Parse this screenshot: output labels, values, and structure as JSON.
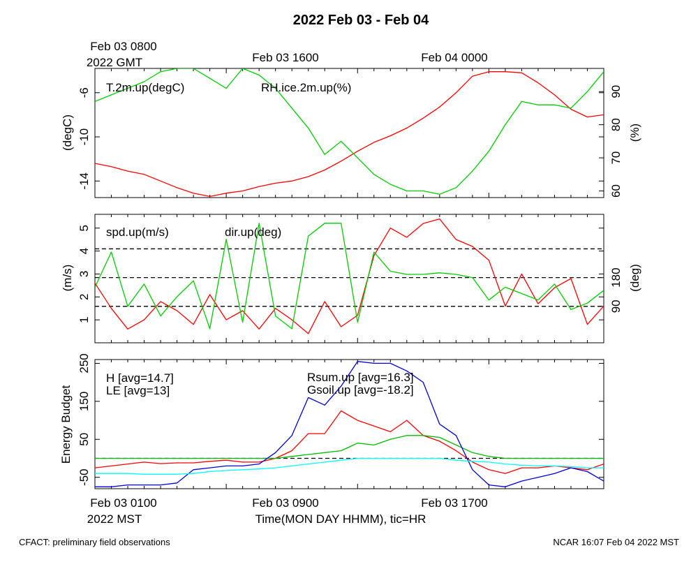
{
  "chart_data": {
    "title": "2022 Feb 03 - Feb 04",
    "type": "line",
    "top_axis": {
      "labels": [
        "Feb 03 0800",
        "Feb 03 1600",
        "Feb 04 0000"
      ],
      "sublabel": "2022 GMT"
    },
    "bottom_axis": {
      "labels": [
        "Feb 03 0100",
        "Feb 03 0900",
        "Feb 03 1700"
      ],
      "sublabel": "2022 MST",
      "xlabel": "Time(MON DAY HHMM), tic=HR"
    },
    "panels": [
      {
        "id": "temp-rh",
        "left_axis": {
          "label": "(degC)",
          "range": [
            -15.5,
            -3.8
          ],
          "ticks": [
            {
              "v": -6,
              "t": "-6"
            },
            {
              "v": -10,
              "t": "-10"
            },
            {
              "v": -14,
              "t": "-14"
            }
          ]
        },
        "right_axis": {
          "label": "(%)",
          "range": [
            58,
            97
          ],
          "ticks": [
            {
              "v": 90,
              "t": "90"
            },
            {
              "v": 80,
              "t": "80"
            },
            {
              "v": 70,
              "t": "70"
            },
            {
              "v": 60,
              "t": "60"
            }
          ]
        },
        "series": [
          {
            "name": "T.2m.up(degC)",
            "color": "#ff0000",
            "axis": "left",
            "x": [
              0,
              1,
              2,
              3,
              4,
              5,
              6,
              7,
              8,
              9,
              10,
              11,
              12,
              13,
              14,
              15,
              16,
              17,
              18,
              19,
              20,
              21,
              22,
              23,
              24,
              25,
              26,
              27,
              28,
              29,
              30,
              31
            ],
            "y": [
              -12.4,
              -12.7,
              -13.1,
              -13.4,
              -14.0,
              -14.6,
              -15.1,
              -15.4,
              -15.1,
              -14.9,
              -14.5,
              -14.2,
              -14.0,
              -13.6,
              -13.0,
              -12.2,
              -11.3,
              -10.5,
              -9.9,
              -9.2,
              -8.3,
              -7.3,
              -6.0,
              -4.5,
              -4.1,
              -4.1,
              -4.2,
              -5.1,
              -6.2,
              -7.5,
              -8.2,
              -8.0
            ]
          },
          {
            "name": "RH.ice.2m.up(%)",
            "color": "#00cc00",
            "axis": "right",
            "x": [
              0,
              1,
              2,
              3,
              4,
              5,
              6,
              7,
              8,
              9,
              10,
              11,
              12,
              13,
              14,
              15,
              16,
              17,
              18,
              19,
              20,
              21,
              22,
              23,
              24,
              25,
              26,
              27,
              28,
              29,
              30,
              31
            ],
            "y": [
              87,
              89,
              91,
              93,
              96,
              97,
              97,
              94,
              91,
              97,
              95,
              91,
              85,
              79,
              71,
              75,
              70,
              65,
              62,
              60,
              60,
              59,
              61,
              66,
              72,
              80,
              87,
              86,
              86,
              85,
              90,
              96
            ]
          }
        ]
      },
      {
        "id": "wind",
        "left_axis": {
          "label": "(m/s)",
          "range": [
            0,
            5.6
          ],
          "ticks": [
            {
              "v": 5,
              "t": "5"
            },
            {
              "v": 4,
              "t": "4"
            },
            {
              "v": 3,
              "t": "3"
            },
            {
              "v": 2,
              "t": "2"
            },
            {
              "v": 1,
              "t": "1"
            }
          ]
        },
        "right_axis": {
          "label": "(deg)",
          "range": [
            -24,
            378
          ],
          "ticks": [
            {
              "v": 180,
              "t": "180"
            },
            {
              "v": 90,
              "t": "90"
            }
          ]
        },
        "reference_lines_right": [
          90,
          180,
          270
        ],
        "series": [
          {
            "name": "spd.up(m/s)",
            "color": "#ff0000",
            "axis": "left",
            "x": [
              0,
              1,
              2,
              3,
              4,
              5,
              6,
              7,
              8,
              9,
              10,
              11,
              12,
              13,
              14,
              15,
              16,
              17,
              18,
              19,
              20,
              21,
              22,
              23,
              24,
              25,
              26,
              27,
              28,
              29,
              30,
              31
            ],
            "y": [
              2.6,
              1.5,
              0.6,
              1.0,
              1.8,
              1.4,
              0.8,
              2.1,
              1.0,
              1.4,
              0.6,
              1.5,
              1.0,
              0.4,
              1.8,
              0.7,
              1.2,
              3.8,
              5.0,
              4.6,
              5.2,
              5.4,
              4.5,
              4.2,
              3.6,
              1.6,
              3.0,
              1.7,
              2.4,
              2.8,
              0.8,
              1.6
            ]
          },
          {
            "name": "dir.up(deg)",
            "color": "#00cc00",
            "axis": "right",
            "x": [
              0,
              1,
              2,
              3,
              4,
              5,
              6,
              7,
              8,
              9,
              10,
              11,
              12,
              13,
              14,
              15,
              16,
              17,
              18,
              19,
              20,
              21,
              22,
              23,
              24,
              25,
              26,
              27,
              28,
              29,
              30,
              31
            ],
            "y": [
              150,
              260,
              90,
              160,
              60,
              120,
              170,
              20,
              300,
              40,
              350,
              60,
              20,
              310,
              350,
              350,
              40,
              260,
              200,
              190,
              190,
              195,
              190,
              180,
              110,
              150,
              130,
              110,
              160,
              80,
              100,
              140
            ]
          }
        ]
      },
      {
        "id": "energy",
        "left_axis": {
          "label": "Energy Budget",
          "range": [
            -80,
            260
          ],
          "ticks": [
            {
              "v": 250,
              "t": "250"
            },
            {
              "v": 150,
              "t": "150"
            },
            {
              "v": 50,
              "t": "50"
            },
            {
              "v": -50,
              "t": "-50"
            }
          ]
        },
        "reference_lines_left": [
          0
        ],
        "series": [
          {
            "name": "H [avg=14.7]",
            "color": "#ff0000",
            "axis": "left",
            "x": [
              0,
              1,
              2,
              3,
              4,
              5,
              6,
              7,
              8,
              9,
              10,
              11,
              12,
              13,
              14,
              15,
              16,
              17,
              18,
              19,
              20,
              21,
              22,
              23,
              24,
              25,
              26,
              27,
              28,
              29,
              30,
              31
            ],
            "y": [
              -25,
              -20,
              -15,
              -10,
              -14,
              -12,
              -12,
              -8,
              -5,
              -10,
              -10,
              0,
              20,
              65,
              65,
              125,
              100,
              85,
              70,
              100,
              60,
              45,
              20,
              -10,
              -30,
              -40,
              -25,
              -25,
              -20,
              -25,
              -30,
              -15
            ]
          },
          {
            "name": "LE [avg=13]",
            "color": "#00bb00",
            "axis": "left",
            "x": [
              0,
              1,
              2,
              3,
              4,
              5,
              6,
              7,
              8,
              9,
              10,
              11,
              12,
              13,
              14,
              15,
              16,
              17,
              18,
              19,
              20,
              21,
              22,
              23,
              24,
              25,
              26,
              27,
              28,
              29,
              30,
              31
            ],
            "y": [
              0,
              0,
              0,
              0,
              0,
              0,
              0,
              0,
              0,
              0,
              0,
              0,
              5,
              10,
              15,
              20,
              40,
              35,
              50,
              60,
              60,
              55,
              35,
              15,
              5,
              0,
              0,
              0,
              0,
              0,
              0,
              0
            ]
          },
          {
            "name": "Rsum.up [avg=16.3]",
            "color": "#0000dd",
            "axis": "left",
            "x": [
              0,
              1,
              2,
              3,
              4,
              5,
              6,
              7,
              8,
              9,
              10,
              11,
              12,
              13,
              14,
              15,
              16,
              17,
              18,
              19,
              20,
              21,
              22,
              23,
              24,
              25,
              26,
              27,
              28,
              29,
              30,
              31
            ],
            "y": [
              -75,
              -75,
              -70,
              -70,
              -70,
              -65,
              -30,
              -25,
              -20,
              -20,
              -15,
              15,
              60,
              160,
              140,
              190,
              255,
              250,
              250,
              230,
              200,
              90,
              60,
              -30,
              -70,
              -75,
              -60,
              -50,
              -40,
              -25,
              -35,
              -60
            ]
          },
          {
            "name": "Gsoil.up [avg=-18.2]",
            "color": "#00ffff",
            "axis": "left",
            "x": [
              0,
              1,
              2,
              3,
              4,
              5,
              6,
              7,
              8,
              9,
              10,
              11,
              12,
              13,
              14,
              15,
              16,
              17,
              18,
              19,
              20,
              21,
              22,
              23,
              24,
              25,
              26,
              27,
              28,
              29,
              30,
              31
            ],
            "y": [
              -40,
              -40,
              -40,
              -42,
              -42,
              -42,
              -40,
              -35,
              -32,
              -30,
              -28,
              -25,
              -20,
              -15,
              -10,
              -5,
              0,
              0,
              0,
              0,
              0,
              0,
              -5,
              -8,
              -10,
              -15,
              -18,
              -20,
              -20,
              -22,
              -25,
              -25
            ]
          }
        ]
      }
    ]
  },
  "footer": {
    "left": "CFACT: preliminary field observations",
    "right": "NCAR 16:07 Feb 04 2022 MST"
  }
}
